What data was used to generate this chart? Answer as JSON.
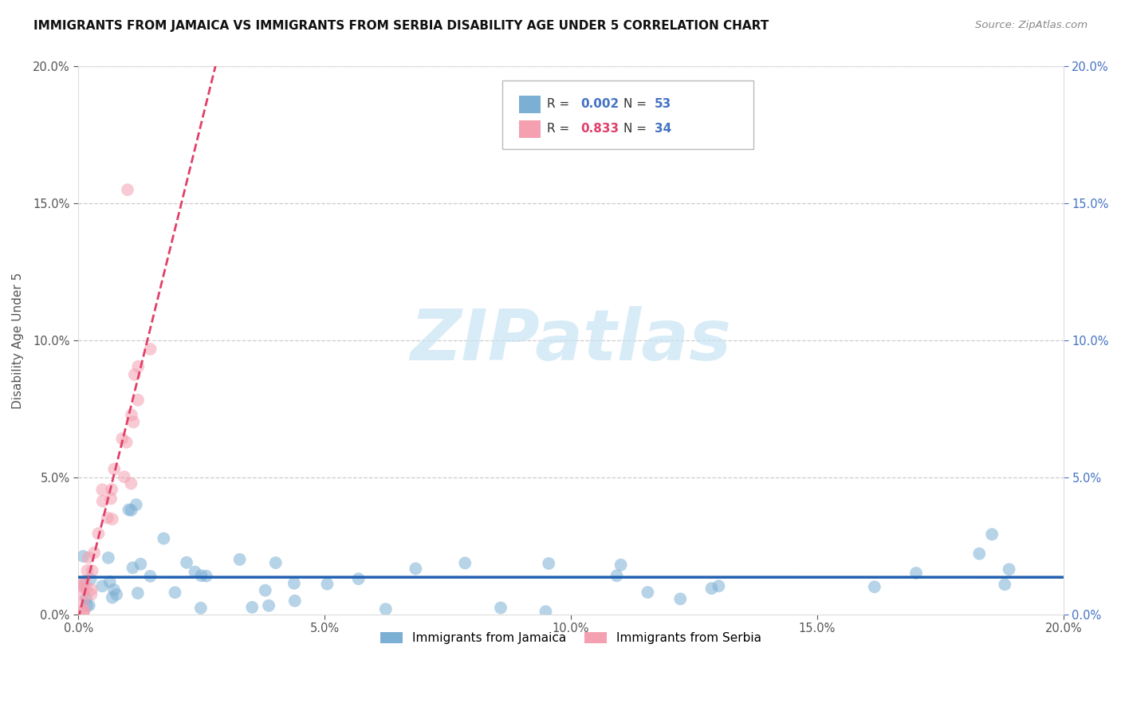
{
  "title": "IMMIGRANTS FROM JAMAICA VS IMMIGRANTS FROM SERBIA DISABILITY AGE UNDER 5 CORRELATION CHART",
  "source": "Source: ZipAtlas.com",
  "ylabel": "Disability Age Under 5",
  "legend_label1": "Immigrants from Jamaica",
  "legend_label2": "Immigrants from Serbia",
  "R1": "0.002",
  "N1": "53",
  "R2": "0.833",
  "N2": "34",
  "color_jamaica": "#7BAFD4",
  "color_serbia": "#F4A0B0",
  "color_line_jamaica": "#2060B0",
  "color_line_serbia": "#E0406A",
  "color_right_ticks": "#4472C4",
  "color_grid": "#cccccc",
  "xlim": [
    0.0,
    0.2
  ],
  "ylim": [
    0.0,
    0.2
  ],
  "watermark_text": "ZIPatlas",
  "watermark_color": "#C8E4F4"
}
